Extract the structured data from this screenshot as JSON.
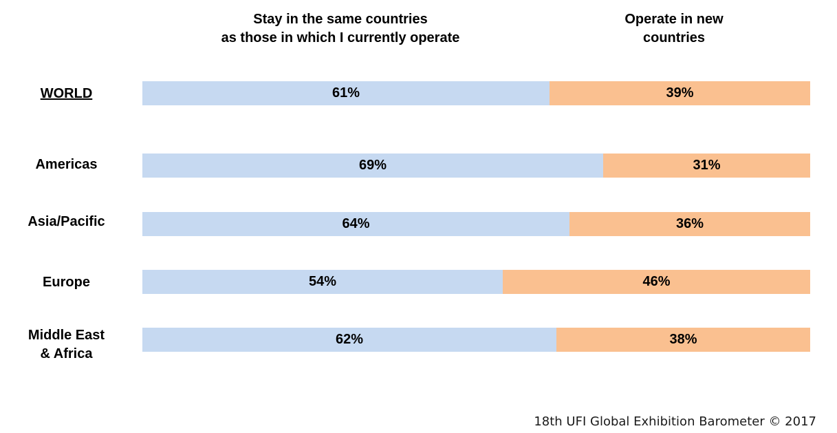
{
  "chart_data": {
    "type": "bar",
    "orientation": "horizontal",
    "stacked": true,
    "percent_stacked": true,
    "categories": [
      "WORLD",
      "Americas",
      "Asia/Pacific",
      "Europe",
      "Middle East & Africa"
    ],
    "category_lines": [
      [
        "WORLD"
      ],
      [
        "Americas"
      ],
      [
        "Asia/Pacific"
      ],
      [
        "Europe"
      ],
      [
        "Middle East",
        "& Africa"
      ]
    ],
    "series": [
      {
        "name": "Stay in the same countries as those in which I currently operate",
        "name_lines": [
          "Stay in the same countries",
          "as those in which I currently operate"
        ],
        "values": [
          61,
          69,
          64,
          54,
          62
        ],
        "labels": [
          "61%",
          "69%",
          "64%",
          "54%",
          "62%"
        ],
        "color": "#c6d9f1"
      },
      {
        "name": "Operate in new countries",
        "name_lines": [
          "Operate in new",
          "countries"
        ],
        "values": [
          39,
          31,
          36,
          46,
          38
        ],
        "labels": [
          "39%",
          "31%",
          "36%",
          "46%",
          "38%"
        ],
        "color": "#fac090"
      }
    ],
    "xlim": [
      0,
      100
    ],
    "grid": false,
    "legend_position": "top"
  },
  "footer": {
    "text": "18th UFI Global Exhibition Barometer  © 2017"
  }
}
